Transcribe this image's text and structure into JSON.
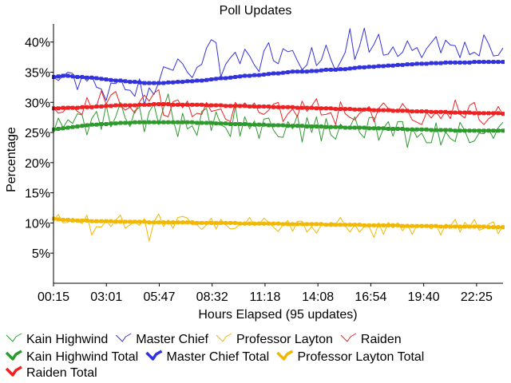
{
  "chart_data": {
    "type": "line",
    "title": "Poll Updates",
    "xlabel": "Hours Elapsed (95 updates)",
    "ylabel": "Percentage",
    "xticks": [
      "00:15",
      "03:01",
      "05:47",
      "08:32",
      "11:18",
      "14:08",
      "16:54",
      "19:40",
      "22:25"
    ],
    "yticks": [
      "5%",
      "10%",
      "15%",
      "20%",
      "25%",
      "30%",
      "35%",
      "40%"
    ],
    "ylim": [
      0,
      43
    ],
    "points": 95,
    "grid": false,
    "legend_position": "bottom",
    "series": [
      {
        "name": "Kain Highwind",
        "color": "#2e9a2e",
        "kind": "update",
        "values": [
          25.0,
          27.4,
          25.8,
          27.1,
          26.5,
          28.1,
          27.9,
          24.6,
          27.3,
          28.5,
          25.5,
          29.6,
          25.9,
          27.6,
          30.0,
          27.4,
          26.0,
          28.6,
          29.2,
          25.1,
          28.4,
          29.7,
          26.3,
          29.1,
          31.4,
          27.2,
          24.3,
          28.2,
          25.6,
          26.1,
          24.5,
          28.5,
          29.0,
          25.3,
          28.4,
          26.3,
          25.8,
          24.3,
          29.4,
          24.4,
          27.6,
          25.6,
          26.9,
          24.0,
          27.2,
          27.4,
          25.4,
          24.3,
          24.2,
          26.8,
          25.6,
          27.9,
          23.4,
          27.5,
          25.0,
          27.6,
          23.6,
          27.3,
          24.6,
          23.9,
          26.4,
          25.6,
          25.9,
          27.6,
          25.0,
          24.1,
          27.5,
          27.5,
          23.7,
          25.7,
          26.8,
          24.4,
          26.8,
          26.8,
          22.5,
          25.8,
          24.2,
          24.9,
          23.3,
          23.3,
          26.6,
          22.9,
          25.1,
          24.0,
          23.5,
          26.7,
          25.3,
          23.3,
          23.6,
          24.9,
          24.8,
          25.6,
          24.0,
          25.8,
          26.7
        ]
      },
      {
        "name": "Master Chief",
        "color": "#3333dd",
        "kind": "update",
        "values": [
          34.2,
          33.6,
          34.4,
          35.0,
          34.8,
          32.1,
          34.4,
          33.5,
          34.4,
          32.5,
          32.2,
          30.3,
          33.2,
          33.1,
          33.9,
          32.1,
          32.0,
          31.0,
          33.9,
          29.6,
          32.4,
          31.3,
          33.3,
          35.9,
          35.6,
          35.3,
          37.2,
          36.4,
          35.0,
          34.1,
          35.8,
          36.3,
          39.0,
          40.4,
          39.9,
          34.2,
          36.3,
          37.4,
          38.3,
          36.4,
          38.8,
          37.7,
          36.2,
          35.1,
          38.5,
          39.9,
          36.9,
          36.4,
          38.9,
          38.4,
          38.6,
          36.9,
          35.4,
          36.2,
          39.1,
          36.1,
          37.0,
          39.5,
          37.1,
          35.2,
          36.7,
          38.3,
          42.2,
          37.1,
          39.3,
          42.3,
          38.3,
          39.6,
          41.3,
          37.8,
          38.0,
          39.2,
          37.6,
          38.3,
          40.2,
          38.6,
          39.1,
          37.4,
          38.9,
          39.9,
          40.9,
          38.2,
          40.3,
          39.5,
          39.4,
          37.4,
          40.0,
          37.9,
          38.3,
          37.7,
          41.2,
          39.7,
          37.7,
          37.8,
          39.0
        ]
      },
      {
        "name": "Professor Layton",
        "color": "#f2b800",
        "kind": "update",
        "values": [
          10.4,
          11.4,
          10.0,
          10.1,
          10.8,
          10.3,
          9.9,
          11.3,
          8.0,
          9.4,
          9.3,
          10.4,
          9.4,
          10.5,
          11.3,
          9.1,
          9.7,
          10.1,
          9.6,
          10.7,
          7.0,
          10.2,
          11.5,
          9.4,
          10.5,
          9.1,
          10.9,
          11.1,
          10.8,
          9.7,
          9.7,
          8.9,
          9.7,
          10.8,
          9.0,
          10.6,
          9.7,
          9.0,
          9.1,
          9.8,
          9.8,
          10.9,
          9.6,
          9.8,
          10.8,
          10.1,
          9.3,
          8.6,
          9.7,
          10.4,
          8.6,
          10.3,
          10.3,
          8.5,
          9.4,
          8.3,
          9.7,
          9.6,
          10.1,
          9.8,
          10.9,
          9.5,
          8.5,
          9.7,
          8.5,
          9.4,
          9.4,
          7.6,
          10.0,
          8.1,
          10.1,
          9.2,
          10.0,
          8.7,
          9.8,
          8.1,
          9.6,
          9.2,
          9.6,
          9.0,
          9.7,
          8.0,
          9.8,
          9.5,
          10.6,
          8.5,
          10.1,
          9.3,
          10.6,
          8.8,
          9.1,
          9.8,
          10.2,
          8.2,
          9.6
        ]
      },
      {
        "name": "Raiden",
        "color": "#ee2222",
        "kind": "update",
        "values": [
          29.1,
          28.2,
          28.4,
          29.3,
          29.3,
          28.5,
          28.0,
          30.8,
          28.9,
          29.4,
          31.9,
          29.7,
          31.2,
          31.8,
          29.5,
          28.7,
          29.2,
          28.2,
          30.1,
          31.2,
          30.2,
          31.5,
          32.1,
          27.9,
          27.6,
          30.1,
          30.4,
          29.1,
          30.2,
          27.6,
          28.2,
          28.0,
          30.0,
          28.5,
          28.7,
          28.9,
          27.2,
          26.8,
          30.0,
          29.1,
          29.9,
          29.1,
          29.9,
          28.3,
          28.0,
          28.7,
          29.7,
          30.0,
          26.8,
          28.1,
          28.9,
          27.6,
          30.2,
          28.5,
          29.4,
          30.6,
          27.9,
          28.0,
          28.3,
          26.3,
          30.1,
          28.1,
          27.5,
          27.1,
          28.2,
          28.7,
          29.3,
          26.8,
          29.0,
          29.9,
          29.0,
          28.8,
          28.4,
          29.8,
          28.7,
          27.1,
          26.7,
          26.3,
          28.3,
          27.4,
          28.5,
          27.3,
          28.5,
          27.3,
          30.4,
          28.0,
          27.4,
          29.5,
          30.0,
          27.1,
          26.3,
          27.3,
          27.8,
          29.3,
          27.9
        ]
      },
      {
        "name": "Kain Highwind Total",
        "color": "#2e9a2e",
        "kind": "total",
        "values": [
          25.5,
          25.6,
          25.7,
          25.8,
          25.9,
          26.0,
          26.1,
          26.2,
          26.3,
          26.3,
          26.4,
          26.4,
          26.5,
          26.5,
          26.6,
          26.6,
          26.6,
          26.7,
          26.7,
          26.7,
          26.7,
          26.7,
          26.7,
          26.7,
          26.7,
          26.7,
          26.7,
          26.7,
          26.7,
          26.7,
          26.6,
          26.6,
          26.6,
          26.6,
          26.5,
          26.5,
          26.5,
          26.4,
          26.4,
          26.4,
          26.4,
          26.3,
          26.3,
          26.3,
          26.3,
          26.2,
          26.2,
          26.2,
          26.2,
          26.1,
          26.1,
          26.1,
          26.1,
          26.0,
          26.0,
          26.0,
          26.0,
          25.9,
          25.9,
          25.9,
          25.9,
          25.8,
          25.8,
          25.8,
          25.8,
          25.8,
          25.7,
          25.7,
          25.7,
          25.7,
          25.6,
          25.6,
          25.6,
          25.6,
          25.5,
          25.5,
          25.5,
          25.5,
          25.5,
          25.4,
          25.4,
          25.4,
          25.4,
          25.4,
          25.3,
          25.3,
          25.3,
          25.3,
          25.3,
          25.3,
          25.3,
          25.3,
          25.3,
          25.3,
          25.3
        ]
      },
      {
        "name": "Master Chief Total",
        "color": "#3333dd",
        "kind": "total",
        "values": [
          34.2,
          34.3,
          34.4,
          34.4,
          34.3,
          34.2,
          34.2,
          34.1,
          34.1,
          34.0,
          33.9,
          33.8,
          33.7,
          33.6,
          33.6,
          33.5,
          33.4,
          33.4,
          33.3,
          33.2,
          33.2,
          33.2,
          33.2,
          33.2,
          33.3,
          33.3,
          33.4,
          33.4,
          33.5,
          33.5,
          33.6,
          33.6,
          33.7,
          33.8,
          33.9,
          34.0,
          34.0,
          34.1,
          34.2,
          34.3,
          34.4,
          34.4,
          34.5,
          34.5,
          34.6,
          34.7,
          34.8,
          34.8,
          34.9,
          35.0,
          35.1,
          35.1,
          35.1,
          35.1,
          35.2,
          35.2,
          35.3,
          35.4,
          35.4,
          35.4,
          35.5,
          35.5,
          35.6,
          35.7,
          35.8,
          35.8,
          35.9,
          35.9,
          36.0,
          36.0,
          36.1,
          36.1,
          36.2,
          36.2,
          36.3,
          36.3,
          36.4,
          36.4,
          36.4,
          36.5,
          36.5,
          36.5,
          36.6,
          36.6,
          36.6,
          36.6,
          36.6,
          36.6,
          36.7,
          36.7,
          36.7,
          36.7,
          36.7,
          36.7,
          36.7
        ]
      },
      {
        "name": "Professor Layton Total",
        "color": "#f2b800",
        "kind": "total",
        "values": [
          10.7,
          10.6,
          10.5,
          10.5,
          10.4,
          10.4,
          10.4,
          10.4,
          10.3,
          10.3,
          10.3,
          10.3,
          10.3,
          10.2,
          10.2,
          10.2,
          10.2,
          10.2,
          10.2,
          10.2,
          10.1,
          10.1,
          10.1,
          10.1,
          10.1,
          10.1,
          10.1,
          10.1,
          10.1,
          10.1,
          10.0,
          10.0,
          10.0,
          10.0,
          10.0,
          10.0,
          10.0,
          10.0,
          10.0,
          9.9,
          9.9,
          9.9,
          9.9,
          9.9,
          9.9,
          9.9,
          9.9,
          9.9,
          9.8,
          9.8,
          9.8,
          9.8,
          9.8,
          9.8,
          9.8,
          9.8,
          9.8,
          9.7,
          9.7,
          9.7,
          9.7,
          9.7,
          9.7,
          9.7,
          9.7,
          9.6,
          9.6,
          9.6,
          9.6,
          9.6,
          9.6,
          9.6,
          9.6,
          9.5,
          9.5,
          9.5,
          9.5,
          9.5,
          9.5,
          9.5,
          9.5,
          9.4,
          9.4,
          9.4,
          9.4,
          9.4,
          9.4,
          9.4,
          9.4,
          9.4,
          9.4,
          9.3,
          9.3,
          9.3,
          9.3
        ]
      },
      {
        "name": "Raiden Total",
        "color": "#ee2222",
        "kind": "total",
        "values": [
          29.0,
          29.0,
          29.1,
          29.1,
          29.1,
          29.1,
          29.2,
          29.2,
          29.2,
          29.3,
          29.3,
          29.4,
          29.4,
          29.5,
          29.5,
          29.5,
          29.5,
          29.5,
          29.6,
          29.6,
          29.6,
          29.7,
          29.7,
          29.7,
          29.7,
          29.6,
          29.6,
          29.6,
          29.6,
          29.6,
          29.6,
          29.6,
          29.5,
          29.5,
          29.5,
          29.5,
          29.4,
          29.4,
          29.4,
          29.4,
          29.4,
          29.3,
          29.3,
          29.3,
          29.3,
          29.3,
          29.2,
          29.2,
          29.2,
          29.2,
          29.2,
          29.1,
          29.1,
          29.1,
          29.1,
          29.0,
          29.0,
          29.0,
          29.0,
          28.9,
          28.9,
          28.9,
          28.9,
          28.8,
          28.8,
          28.8,
          28.8,
          28.7,
          28.7,
          28.7,
          28.7,
          28.6,
          28.6,
          28.6,
          28.6,
          28.5,
          28.5,
          28.5,
          28.5,
          28.4,
          28.4,
          28.4,
          28.4,
          28.3,
          28.3,
          28.3,
          28.3,
          28.3,
          28.2,
          28.2,
          28.2,
          28.2,
          28.2,
          28.2,
          28.1
        ]
      }
    ]
  }
}
